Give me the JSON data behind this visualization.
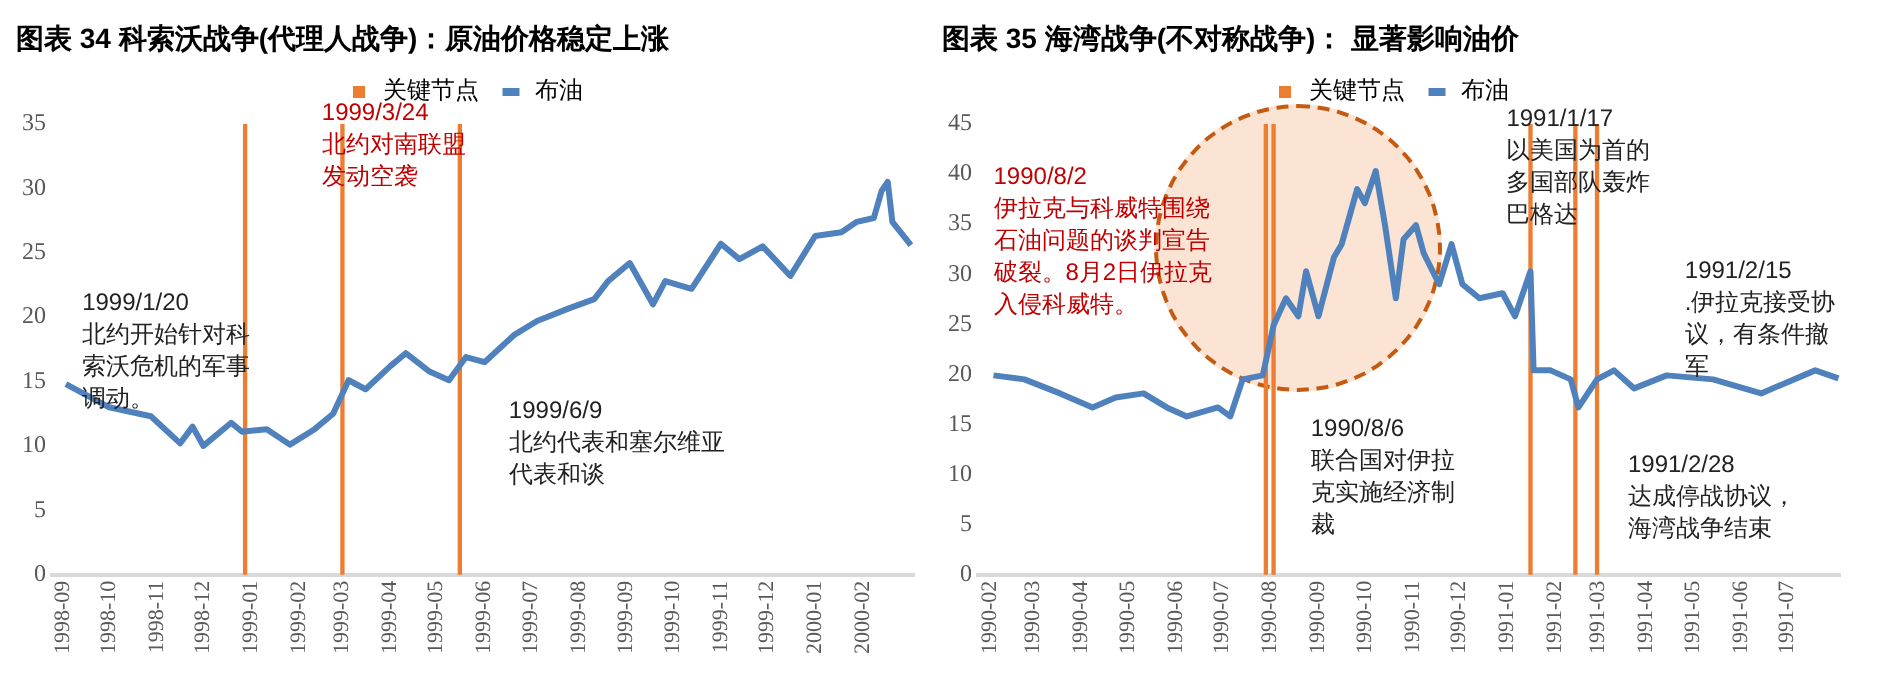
{
  "chart_data": [
    {
      "type": "line",
      "title": "图表 34 科索沃战争(代理人战争)：原油价格稳定上涨",
      "legend": "top",
      "grid": false,
      "marker": "none",
      "line_style": "solid",
      "xlim": [
        "1998-08-25",
        "2000-03-05"
      ],
      "xticks": [
        "1998-09",
        "1998-10",
        "1998-11",
        "1998-12",
        "1999-01",
        "1999-02",
        "1999-03",
        "1999-04",
        "1999-05",
        "1999-06",
        "1999-07",
        "1999-08",
        "1999-09",
        "1999-10",
        "1999-11",
        "1999-12",
        "2000-01",
        "2000-02"
      ],
      "ylim": [
        0,
        35
      ],
      "yticks": [
        0,
        5,
        10,
        15,
        20,
        25,
        30,
        35
      ],
      "series": [
        {
          "name": "关键节点",
          "type": "bar",
          "color": "#ed7d31",
          "x": [
            "1998-12-28",
            "1999-03-01",
            "1999-05-16"
          ],
          "values": [
            35,
            35,
            35
          ]
        },
        {
          "name": "布油",
          "color": "#4f81bd",
          "x": [
            "1998-09-03",
            "1998-10-01",
            "1998-10-28",
            "1998-11-16",
            "1998-11-24",
            "1998-12-01",
            "1998-12-19",
            "1998-12-26",
            "1999-01-11",
            "1999-01-26",
            "1999-02-11",
            "1999-02-23",
            "1999-03-05",
            "1999-03-16",
            "1999-04-01",
            "1999-04-11",
            "1999-04-26",
            "1999-05-09",
            "1999-05-20",
            "1999-06-01",
            "1999-06-20",
            "1999-07-05",
            "1999-07-26",
            "1999-08-11",
            "1999-08-20",
            "1999-09-03",
            "1999-09-18",
            "1999-09-26",
            "1999-10-13",
            "1999-11-01",
            "1999-11-13",
            "1999-11-28",
            "1999-12-16",
            "2000-01-01",
            "2000-01-18",
            "2000-01-28",
            "2000-02-08",
            "2000-02-13",
            "2000-02-17",
            "2000-02-20",
            "2000-03-03"
          ],
          "values": [
            14.8,
            13.0,
            12.3,
            10.2,
            11.5,
            10.0,
            11.8,
            11.1,
            11.3,
            10.1,
            11.3,
            12.5,
            15.1,
            14.4,
            16.2,
            17.2,
            15.8,
            15.1,
            16.9,
            16.5,
            18.6,
            19.7,
            20.7,
            21.4,
            22.8,
            24.2,
            21.0,
            22.8,
            22.2,
            25.7,
            24.5,
            25.5,
            23.2,
            26.3,
            26.6,
            27.4,
            27.7,
            29.8,
            30.5,
            27.4,
            25.6
          ]
        }
      ],
      "annotations": [
        "1999/1/20",
        "北约开始针对科索沃危机的军事调动。",
        "1999/3/24",
        "北约对南联盟发动空袭",
        "1999/6/9",
        "北约代表和塞尔维亚代表和谈"
      ]
    },
    {
      "type": "line",
      "title": "图表 35 海湾战争(不对称战争)：  显著影响油价",
      "legend": "top",
      "grid": false,
      "marker": "none",
      "line_style": "solid",
      "xlim": [
        "1990-01-24",
        "1991-08-04"
      ],
      "xticks": [
        "1990-02",
        "1990-03",
        "1990-04",
        "1990-05",
        "1990-06",
        "1990-07",
        "1990-08",
        "1990-09",
        "1990-10",
        "1990-11",
        "1990-12",
        "1991-01",
        "1991-02",
        "1991-03",
        "1991-04",
        "1991-05",
        "1991-06",
        "1991-07"
      ],
      "ylim": [
        0,
        45
      ],
      "yticks": [
        0,
        5,
        10,
        15,
        20,
        25,
        30,
        35,
        40,
        45
      ],
      "series": [
        {
          "name": "关键节点",
          "type": "bar",
          "color": "#ed7d31",
          "x": [
            "1990-07-29",
            "1990-08-03",
            "1991-01-16",
            "1991-02-14",
            "1991-02-28"
          ],
          "values": [
            45,
            45,
            45,
            45,
            45
          ]
        },
        {
          "name": "布油",
          "color": "#4f81bd",
          "x": [
            "1990-02-03",
            "1990-02-23",
            "1990-03-18",
            "1990-04-08",
            "1990-04-23",
            "1990-05-11",
            "1990-05-26",
            "1990-06-08",
            "1990-06-28",
            "1990-07-06",
            "1990-07-14",
            "1990-07-27",
            "1990-08-03",
            "1990-08-11",
            "1990-08-19",
            "1990-08-24",
            "1990-09-01",
            "1990-09-11",
            "1990-09-16",
            "1990-09-26",
            "1990-10-01",
            "1990-10-08",
            "1990-10-14",
            "1990-10-21",
            "1990-10-26",
            "1990-11-03",
            "1990-11-08",
            "1990-11-18",
            "1990-11-26",
            "1990-12-03",
            "1990-12-14",
            "1990-12-29",
            "1991-01-06",
            "1991-01-16",
            "1991-01-18",
            "1991-01-29",
            "1991-02-11",
            "1991-02-16",
            "1991-02-28",
            "1991-03-11",
            "1991-03-24",
            "1991-04-14",
            "1991-05-14",
            "1991-06-14",
            "1991-07-19",
            "1991-08-03"
          ],
          "values": [
            19.9,
            19.5,
            18.1,
            16.7,
            17.7,
            18.1,
            16.7,
            15.8,
            16.7,
            15.8,
            19.5,
            19.9,
            24.9,
            27.6,
            25.8,
            30.3,
            25.8,
            31.7,
            33.0,
            38.5,
            37.1,
            40.3,
            34.9,
            27.6,
            33.5,
            34.9,
            32.1,
            29.0,
            33.0,
            29.0,
            27.6,
            28.1,
            25.8,
            30.3,
            20.4,
            20.4,
            19.5,
            16.7,
            19.5,
            20.4,
            18.6,
            19.9,
            19.5,
            18.1,
            20.4,
            19.6
          ]
        }
      ],
      "annotations": [
        "1990/8/2",
        "伊拉克与科威特围绕石油问题的谈判宣告破裂。8月2日伊拉克入侵科威特。",
        "1990/8/6",
        "联合国对伊拉克实施经济制裁",
        "1991/1/17",
        "以美国为首的多国部队轰炸巴格达",
        "1991/2/15",
        ".伊拉克接受协议，有条件撤军",
        "1991/2/28",
        "达成停战协议，海湾战争结束"
      ]
    }
  ]
}
